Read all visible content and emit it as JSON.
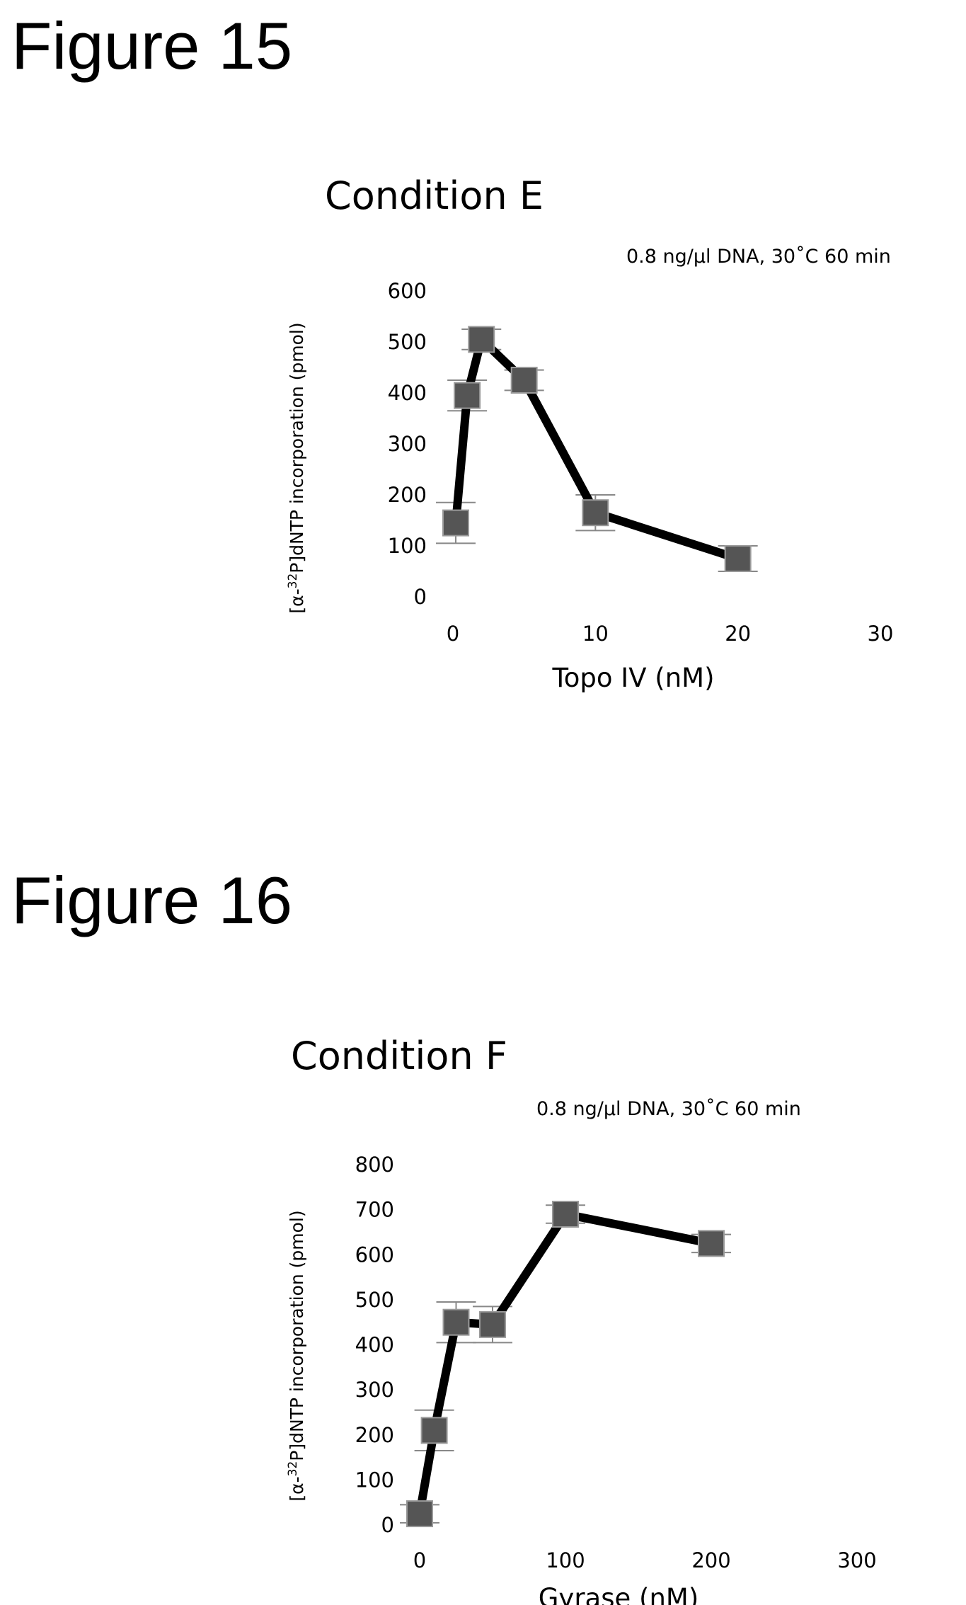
{
  "figures": [
    {
      "label": "Figure 15"
    },
    {
      "label": "Figure 16"
    }
  ],
  "chart_data": [
    {
      "type": "line",
      "title": "Condition E",
      "subtitle": "0.8 ng/μl DNA, 30˚C 60 min",
      "xlabel": "Topo IV (nM)",
      "ylabel_prefix": "[α-",
      "ylabel_sup": "32",
      "ylabel_rest": "P]dNTP incorporation (pmol)",
      "xlim": [
        0,
        30
      ],
      "ylim": [
        0,
        600
      ],
      "xticks": [
        0,
        10,
        20,
        30
      ],
      "yticks": [
        0,
        100,
        200,
        300,
        400,
        500,
        600
      ],
      "grid": false,
      "marker": "square",
      "line_color": "#000000",
      "marker_color": "#555555",
      "series": [
        {
          "x": [
            0.2,
            1,
            2,
            5,
            10,
            20
          ],
          "values": [
            145,
            395,
            505,
            425,
            165,
            75
          ],
          "error": [
            40,
            30,
            20,
            20,
            35,
            25
          ]
        }
      ]
    },
    {
      "type": "line",
      "title": "Condition F",
      "subtitle": "0.8 ng/μl DNA, 30˚C 60 min",
      "xlabel": "Gyrase (nM)",
      "ylabel_prefix": "[α-",
      "ylabel_sup": "32",
      "ylabel_rest": "P]dNTP incorporation (pmol)",
      "xlim": [
        0,
        300
      ],
      "ylim": [
        0,
        800
      ],
      "xticks": [
        0,
        100,
        200,
        300
      ],
      "yticks": [
        0,
        100,
        200,
        300,
        400,
        500,
        600,
        700,
        800
      ],
      "grid": false,
      "marker": "square",
      "line_color": "#000000",
      "marker_color": "#555555",
      "series": [
        {
          "x": [
            0,
            10,
            25,
            50,
            100,
            200
          ],
          "values": [
            25,
            210,
            450,
            445,
            690,
            625
          ],
          "error": [
            20,
            45,
            45,
            40,
            20,
            20
          ]
        }
      ]
    }
  ]
}
